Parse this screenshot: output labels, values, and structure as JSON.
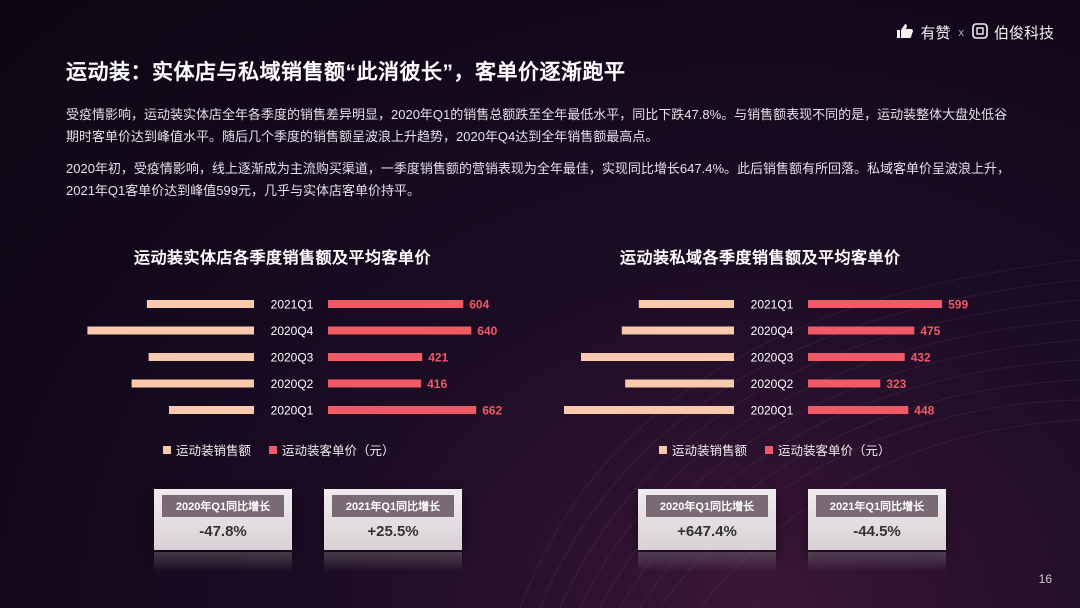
{
  "brand": {
    "name1": "有赞",
    "separator": "x",
    "name2": "伯俊科技"
  },
  "title": "运动装：实体店与私域销售额“此消彼长”，客单价逐渐跑平",
  "paragraphs": [
    "受疫情影响，运动装实体店全年各季度的销售差异明显，2020年Q1的销售总额跌至全年最低水平，同比下跌47.8%。与销售额表现不同的是，运动装整体大盘处低谷期时客单价达到峰值水平。随后几个季度的销售额呈波浪上升趋势，2020年Q4达到全年销售额最高点。",
    "2020年初，受疫情影响，线上逐渐成为主流购买渠道，一季度销售额的营销表现为全年最佳，实现同比增长647.4%。此后销售额有所回落。私域客单价呈波浪上升，2021年Q1客单价达到峰值599元，几乎与实体店客单价持平。"
  ],
  "colors": {
    "sales": "#f9c9ae",
    "price": "#f05a66"
  },
  "chart_data": [
    {
      "type": "bar",
      "title": "运动装实体店各季度销售额及平均客单价",
      "categories": [
        "2021Q1",
        "2020Q4",
        "2020Q3",
        "2020Q2",
        "2020Q1"
      ],
      "series": [
        {
          "name": "运动装销售额",
          "values": [
            0.63,
            0.98,
            0.62,
            0.72,
            0.5
          ]
        },
        {
          "name": "运动装客单价（元）",
          "values": [
            604,
            640,
            421,
            416,
            662
          ]
        }
      ],
      "legend_position": "bottom",
      "summary": [
        {
          "label": "2020年Q1同比增长",
          "value": "-47.8%"
        },
        {
          "label": "2021年Q1同比增长",
          "value": "+25.5%"
        }
      ]
    },
    {
      "type": "bar",
      "title": "运动装私域各季度销售额及平均客单价",
      "categories": [
        "2021Q1",
        "2020Q4",
        "2020Q3",
        "2020Q2",
        "2020Q1"
      ],
      "series": [
        {
          "name": "运动装销售额",
          "values": [
            0.56,
            0.66,
            0.9,
            0.64,
            1.0
          ]
        },
        {
          "name": "运动装客单价（元）",
          "values": [
            599,
            475,
            432,
            323,
            448
          ]
        }
      ],
      "legend_position": "bottom",
      "summary": [
        {
          "label": "2020年Q1同比增长",
          "value": "+647.4%"
        },
        {
          "label": "2021年Q1同比增长",
          "value": "-44.5%"
        }
      ]
    }
  ],
  "page_number": "16"
}
